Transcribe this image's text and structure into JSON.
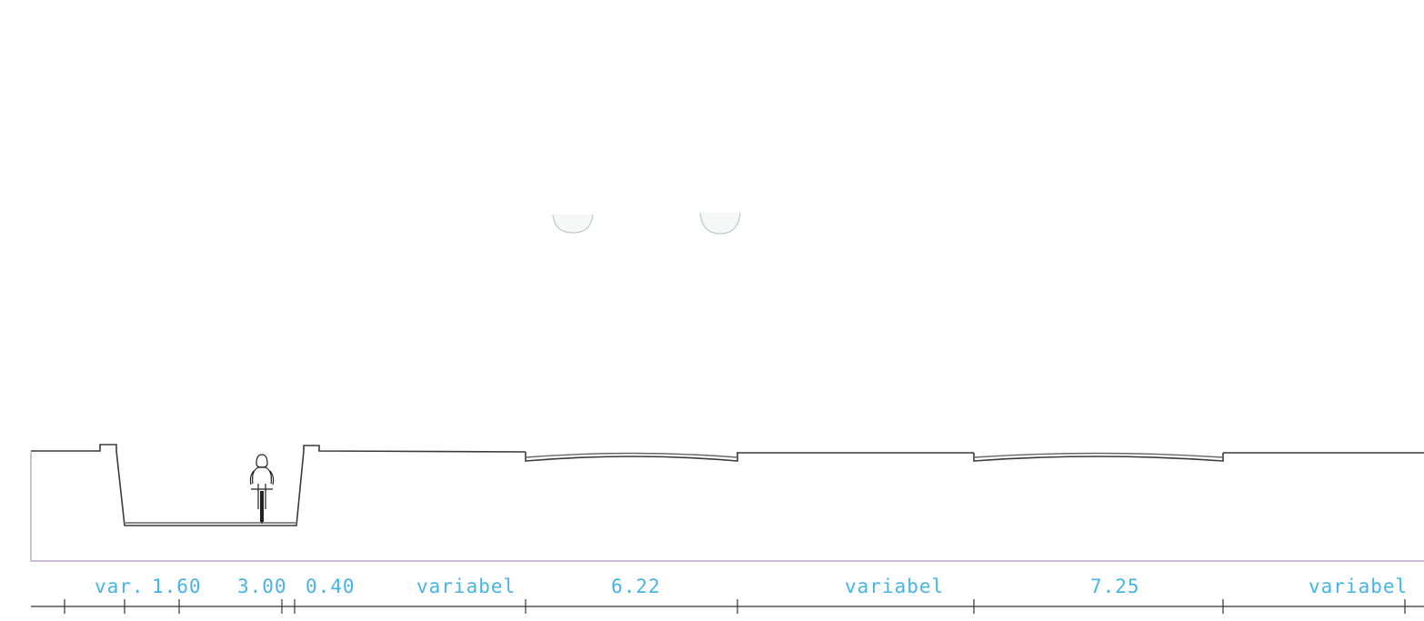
{
  "drawing": {
    "type": "road-cross-section",
    "colors": {
      "dimension_text": "#46b4e6",
      "profile_line": "#3a3a3a",
      "outline": "#b9a9c9"
    },
    "dimensions": [
      {
        "label": "var."
      },
      {
        "label": "1.60"
      },
      {
        "label": "3.00"
      },
      {
        "label": "0.40"
      },
      {
        "label": "variabel"
      },
      {
        "label": "6.22"
      },
      {
        "label": "variabel"
      },
      {
        "label": "7.25"
      },
      {
        "label": "variabel"
      }
    ],
    "figures": {
      "cyclist": "cyclist-icon",
      "lamps": [
        "lamp-icon",
        "lamp-icon"
      ]
    }
  }
}
